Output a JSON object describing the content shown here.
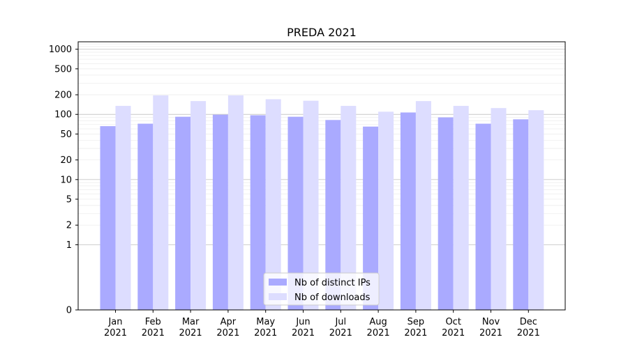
{
  "chart_data": {
    "type": "bar",
    "title": "PREDA 2021",
    "xlabel": "",
    "ylabel": "",
    "y_scale": "symlog",
    "ylim": [
      0,
      1300
    ],
    "y_ticks": [
      0,
      1,
      2,
      5,
      10,
      20,
      50,
      100,
      200,
      500,
      1000
    ],
    "grid": "horizontal",
    "legend_position": "lower-center",
    "categories": [
      [
        "Jan",
        "2021"
      ],
      [
        "Feb",
        "2021"
      ],
      [
        "Mar",
        "2021"
      ],
      [
        "Apr",
        "2021"
      ],
      [
        "May",
        "2021"
      ],
      [
        "Jun",
        "2021"
      ],
      [
        "Jul",
        "2021"
      ],
      [
        "Aug",
        "2021"
      ],
      [
        "Sep",
        "2021"
      ],
      [
        "Oct",
        "2021"
      ],
      [
        "Nov",
        "2021"
      ],
      [
        "Dec",
        "2021"
      ]
    ],
    "series": [
      {
        "name": "Nb of distinct IPs",
        "color": "#aaaaff",
        "values": [
          66,
          72,
          92,
          99,
          97,
          92,
          82,
          65,
          107,
          90,
          72,
          84
        ]
      },
      {
        "name": "Nb of downloads",
        "color": "#ddddff",
        "values": [
          135,
          196,
          160,
          196,
          171,
          162,
          135,
          110,
          160,
          135,
          125,
          116
        ]
      }
    ]
  }
}
